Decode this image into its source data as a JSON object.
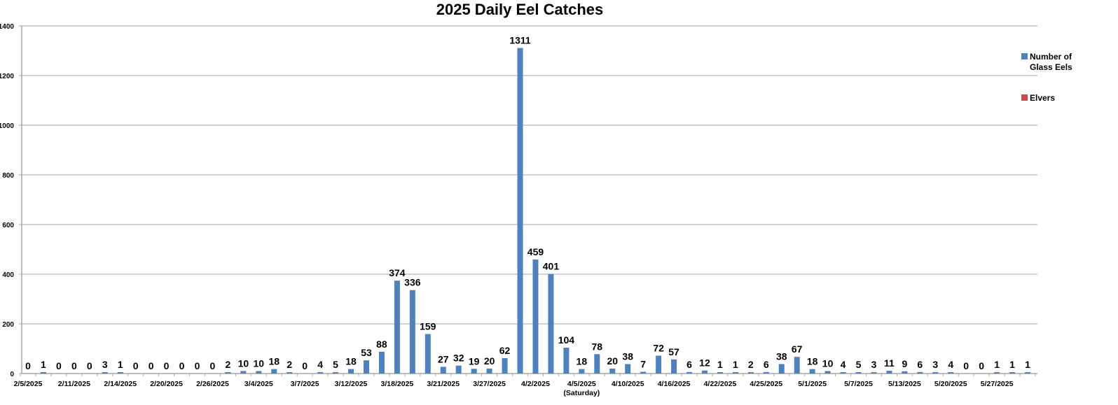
{
  "chart_data": {
    "type": "bar",
    "title": "2025 Daily Eel Catches",
    "xlabel": "",
    "ylabel": "",
    "ylim": [
      0,
      1400
    ],
    "yticks": [
      0,
      200,
      400,
      600,
      800,
      1000,
      1200,
      1400
    ],
    "grid": true,
    "legend_position": "right",
    "tick_labels": [
      {
        "index": 0,
        "label": "2/5/2025"
      },
      {
        "index": 3,
        "label": "2/11/2025"
      },
      {
        "index": 6,
        "label": "2/14/2025"
      },
      {
        "index": 9,
        "label": "2/20/2025"
      },
      {
        "index": 12,
        "label": "2/26/2025"
      },
      {
        "index": 15,
        "label": "3/4/2025"
      },
      {
        "index": 18,
        "label": "3/7/2025"
      },
      {
        "index": 21,
        "label": "3/12/2025"
      },
      {
        "index": 24,
        "label": "3/18/2025"
      },
      {
        "index": 27,
        "label": "3/21/2025"
      },
      {
        "index": 30,
        "label": "3/27/2025"
      },
      {
        "index": 33,
        "label": "4/2/2025"
      },
      {
        "index": 36,
        "label": "4/5/2025",
        "sublabel": "(Saturday)"
      },
      {
        "index": 39,
        "label": "4/10/2025"
      },
      {
        "index": 42,
        "label": "4/16/2025"
      },
      {
        "index": 45,
        "label": "4/22/2025"
      },
      {
        "index": 48,
        "label": "4/25/2025"
      },
      {
        "index": 51,
        "label": "5/1/2025"
      },
      {
        "index": 54,
        "label": "5/7/2025"
      },
      {
        "index": 57,
        "label": "5/13/2025"
      },
      {
        "index": 60,
        "label": "5/20/2025"
      },
      {
        "index": 63,
        "label": "5/27/2025"
      }
    ],
    "series": [
      {
        "name": "Number of Glass Eels",
        "color": "#4F81BD",
        "values": [
          0,
          1,
          0,
          0,
          0,
          3,
          1,
          0,
          0,
          0,
          0,
          0,
          0,
          2,
          10,
          10,
          18,
          2,
          0,
          4,
          5,
          18,
          53,
          88,
          374,
          336,
          159,
          27,
          32,
          19,
          20,
          62,
          1311,
          459,
          401,
          104,
          18,
          78,
          20,
          38,
          7,
          72,
          57,
          6,
          12,
          1,
          1,
          2,
          6,
          38,
          67,
          18,
          10,
          4,
          5,
          3,
          11,
          9,
          6,
          3,
          4,
          0,
          0,
          1,
          1,
          1
        ]
      },
      {
        "name": "Elvers",
        "color": "#C0504D",
        "values": []
      }
    ]
  },
  "legend": {
    "items": [
      {
        "label": "Number of Glass Eels",
        "color": "#4F81BD"
      },
      {
        "label": "Elvers",
        "color": "#C0504D"
      }
    ]
  }
}
